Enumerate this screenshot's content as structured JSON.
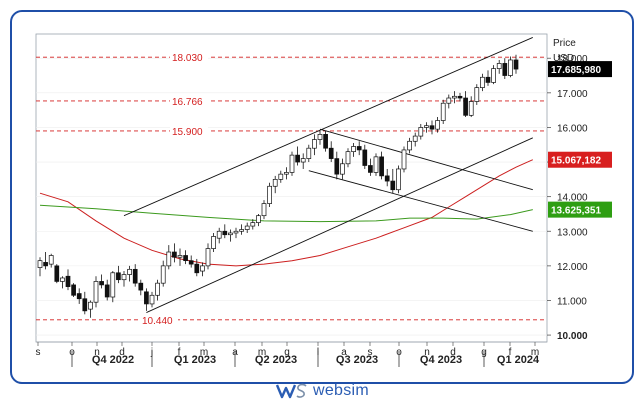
{
  "chart_data": {
    "type": "candlestick",
    "title": "",
    "y_axis": {
      "unit_label_1": "Price",
      "unit_label_2": "USD",
      "ticks": [
        "18.000",
        "17.000",
        "16.000",
        "15.000",
        "14.000",
        "13.000",
        "12.000",
        "11.000",
        "10.000"
      ],
      "tick_values": [
        18000,
        17000,
        16000,
        15000,
        14000,
        13000,
        12000,
        11000,
        10000
      ],
      "ylim": [
        9800,
        18700
      ]
    },
    "x_axis": {
      "months": [
        "s",
        "o",
        "n",
        "d",
        "j",
        "f",
        "m",
        "a",
        "m",
        "g",
        "l",
        "a",
        "s",
        "o",
        "n",
        "d",
        "g",
        "f",
        "m"
      ],
      "quarters": [
        "Q4 2022",
        "Q1 2023",
        "Q2 2023",
        "Q3 2023",
        "Q4 2023",
        "Q1 2024"
      ]
    },
    "current_price": {
      "label": "17.685,980",
      "value": 17686,
      "color": "#000000"
    },
    "indicators": [
      {
        "name": "red moving average",
        "last_label": "15.067,182",
        "last_value": 15067,
        "color": "#cc1f1f",
        "points": [
          [
            0,
            14100
          ],
          [
            5,
            13850
          ],
          [
            10,
            13300
          ],
          [
            15,
            12800
          ],
          [
            20,
            12450
          ],
          [
            25,
            12200
          ],
          [
            30,
            12050
          ],
          [
            35,
            12000
          ],
          [
            40,
            12050
          ],
          [
            45,
            12150
          ],
          [
            50,
            12300
          ],
          [
            55,
            12550
          ],
          [
            60,
            12800
          ],
          [
            65,
            13100
          ],
          [
            70,
            13400
          ],
          [
            73,
            13700
          ],
          [
            76,
            14000
          ],
          [
            79,
            14300
          ],
          [
            82,
            14600
          ],
          [
            85,
            14850
          ],
          [
            88,
            15067
          ]
        ]
      },
      {
        "name": "green moving average",
        "last_label": "13.625,351",
        "last_value": 13625,
        "color": "#3c9a1e",
        "points": [
          [
            0,
            13750
          ],
          [
            10,
            13650
          ],
          [
            20,
            13520
          ],
          [
            30,
            13400
          ],
          [
            40,
            13300
          ],
          [
            50,
            13280
          ],
          [
            60,
            13300
          ],
          [
            66,
            13380
          ],
          [
            72,
            13380
          ],
          [
            78,
            13350
          ],
          [
            84,
            13480
          ],
          [
            88,
            13625
          ]
        ]
      }
    ],
    "fib_levels": [
      {
        "label": "18.030",
        "value": 18030
      },
      {
        "label": "16.766",
        "value": 16766
      },
      {
        "label": "15.900",
        "value": 15900
      },
      {
        "label": "10.440",
        "value": 10440
      }
    ],
    "trendlines": [
      {
        "name": "upper channel",
        "from": [
          15,
          13450
        ],
        "to": [
          88,
          18600
        ]
      },
      {
        "name": "lower channel",
        "from": [
          19,
          10650
        ],
        "to": [
          88,
          15700
        ]
      },
      {
        "name": "falling channel top",
        "from": [
          50,
          15950
        ],
        "to": [
          88,
          14200
        ]
      },
      {
        "name": "falling channel bottom",
        "from": [
          48,
          14750
        ],
        "to": [
          88,
          13000
        ]
      }
    ],
    "candles": [
      [
        0,
        11950,
        12250,
        11700,
        12150
      ],
      [
        1,
        12100,
        12400,
        11900,
        12000
      ],
      [
        2,
        12050,
        12350,
        11950,
        12300
      ],
      [
        3,
        12000,
        12050,
        11500,
        11550
      ],
      [
        4,
        11550,
        11700,
        11350,
        11650
      ],
      [
        5,
        11700,
        11900,
        11300,
        11400
      ],
      [
        6,
        11450,
        11500,
        11100,
        11150
      ],
      [
        7,
        11200,
        11350,
        10900,
        11050
      ],
      [
        8,
        11050,
        11250,
        10600,
        10700
      ],
      [
        9,
        10750,
        11000,
        10500,
        10950
      ],
      [
        10,
        10950,
        11700,
        10800,
        11550
      ],
      [
        11,
        11550,
        11750,
        11350,
        11450
      ],
      [
        12,
        11450,
        11600,
        11000,
        11100
      ],
      [
        13,
        11100,
        11850,
        10950,
        11800
      ],
      [
        14,
        11800,
        12000,
        11500,
        11600
      ],
      [
        15,
        11600,
        11850,
        11400,
        11750
      ],
      [
        16,
        11750,
        12000,
        11550,
        11900
      ],
      [
        17,
        11900,
        12050,
        11400,
        11500
      ],
      [
        18,
        11500,
        11600,
        11150,
        11300
      ],
      [
        19,
        11250,
        11350,
        10700,
        10900
      ],
      [
        20,
        10900,
        11250,
        10800,
        11150
      ],
      [
        21,
        11150,
        11600,
        11000,
        11500
      ],
      [
        22,
        11500,
        12150,
        11400,
        12000
      ],
      [
        23,
        12000,
        12600,
        11900,
        12400
      ],
      [
        24,
        12400,
        12650,
        12100,
        12250
      ],
      [
        25,
        12250,
        12500,
        12000,
        12300
      ],
      [
        26,
        12300,
        12450,
        12050,
        12150
      ],
      [
        27,
        12150,
        12300,
        11950,
        12050
      ],
      [
        28,
        12050,
        12200,
        11700,
        11800
      ],
      [
        29,
        11850,
        12100,
        11700,
        12000
      ],
      [
        30,
        12000,
        12650,
        11900,
        12500
      ],
      [
        31,
        12500,
        12950,
        12400,
        12850
      ],
      [
        32,
        12800,
        13100,
        12650,
        13000
      ],
      [
        33,
        13000,
        13200,
        12800,
        12900
      ],
      [
        34,
        12900,
        13050,
        12700,
        12950
      ],
      [
        35,
        12950,
        13100,
        12800,
        13000
      ],
      [
        36,
        13000,
        13200,
        12900,
        13050
      ],
      [
        37,
        13050,
        13250,
        12950,
        13150
      ],
      [
        38,
        13150,
        13350,
        13050,
        13250
      ],
      [
        39,
        13250,
        13500,
        13150,
        13450
      ],
      [
        40,
        13450,
        13900,
        13350,
        13800
      ],
      [
        41,
        13800,
        14400,
        13700,
        14300
      ],
      [
        42,
        14300,
        14600,
        14100,
        14500
      ],
      [
        43,
        14500,
        14750,
        14400,
        14650
      ],
      [
        44,
        14650,
        14850,
        14500,
        14700
      ],
      [
        45,
        14700,
        15300,
        14600,
        15200
      ],
      [
        46,
        15200,
        15450,
        14900,
        15000
      ],
      [
        47,
        15000,
        15250,
        14800,
        15100
      ],
      [
        48,
        15100,
        15500,
        15000,
        15400
      ],
      [
        49,
        15400,
        15800,
        15200,
        15650
      ],
      [
        50,
        15650,
        15900,
        15500,
        15800
      ],
      [
        51,
        15800,
        15900,
        15300,
        15400
      ],
      [
        52,
        15400,
        15600,
        15000,
        15100
      ],
      [
        53,
        15100,
        15300,
        14500,
        14650
      ],
      [
        54,
        14650,
        15100,
        14500,
        14950
      ],
      [
        55,
        14950,
        15400,
        14850,
        15300
      ],
      [
        56,
        15300,
        15550,
        15150,
        15450
      ],
      [
        57,
        15450,
        15600,
        15200,
        15350
      ],
      [
        58,
        15350,
        15500,
        14800,
        14900
      ],
      [
        59,
        14900,
        15100,
        14600,
        14700
      ],
      [
        60,
        14700,
        15250,
        14600,
        15150
      ],
      [
        61,
        15150,
        15300,
        14500,
        14600
      ],
      [
        62,
        14600,
        14800,
        14300,
        14450
      ],
      [
        63,
        14450,
        14800,
        14100,
        14200
      ],
      [
        64,
        14200,
        14900,
        14100,
        14800
      ],
      [
        65,
        14800,
        15450,
        14700,
        15350
      ],
      [
        66,
        15350,
        15700,
        15250,
        15600
      ],
      [
        67,
        15600,
        15850,
        15450,
        15750
      ],
      [
        68,
        15750,
        16100,
        15650,
        16000
      ],
      [
        69,
        16000,
        16150,
        15850,
        16050
      ],
      [
        70,
        16050,
        16200,
        15800,
        15950
      ],
      [
        71,
        15950,
        16300,
        15850,
        16200
      ],
      [
        72,
        16200,
        16800,
        16100,
        16700
      ],
      [
        73,
        16700,
        16950,
        16550,
        16850
      ],
      [
        74,
        16850,
        17050,
        16700,
        16900
      ],
      [
        75,
        16900,
        17000,
        16750,
        16850
      ],
      [
        76,
        16850,
        17050,
        16300,
        16350
      ],
      [
        77,
        16350,
        16900,
        16300,
        16750
      ],
      [
        78,
        16750,
        17250,
        16650,
        17150
      ],
      [
        79,
        17150,
        17550,
        17050,
        17450
      ],
      [
        80,
        17450,
        17650,
        17200,
        17300
      ],
      [
        81,
        17300,
        17800,
        17250,
        17700
      ],
      [
        82,
        17700,
        17950,
        17550,
        17850
      ],
      [
        83,
        17850,
        18000,
        17400,
        17500
      ],
      [
        84,
        17500,
        18050,
        17450,
        17950
      ],
      [
        85,
        17950,
        18100,
        17550,
        17686
      ]
    ]
  },
  "footer": {
    "brand": "websim"
  }
}
